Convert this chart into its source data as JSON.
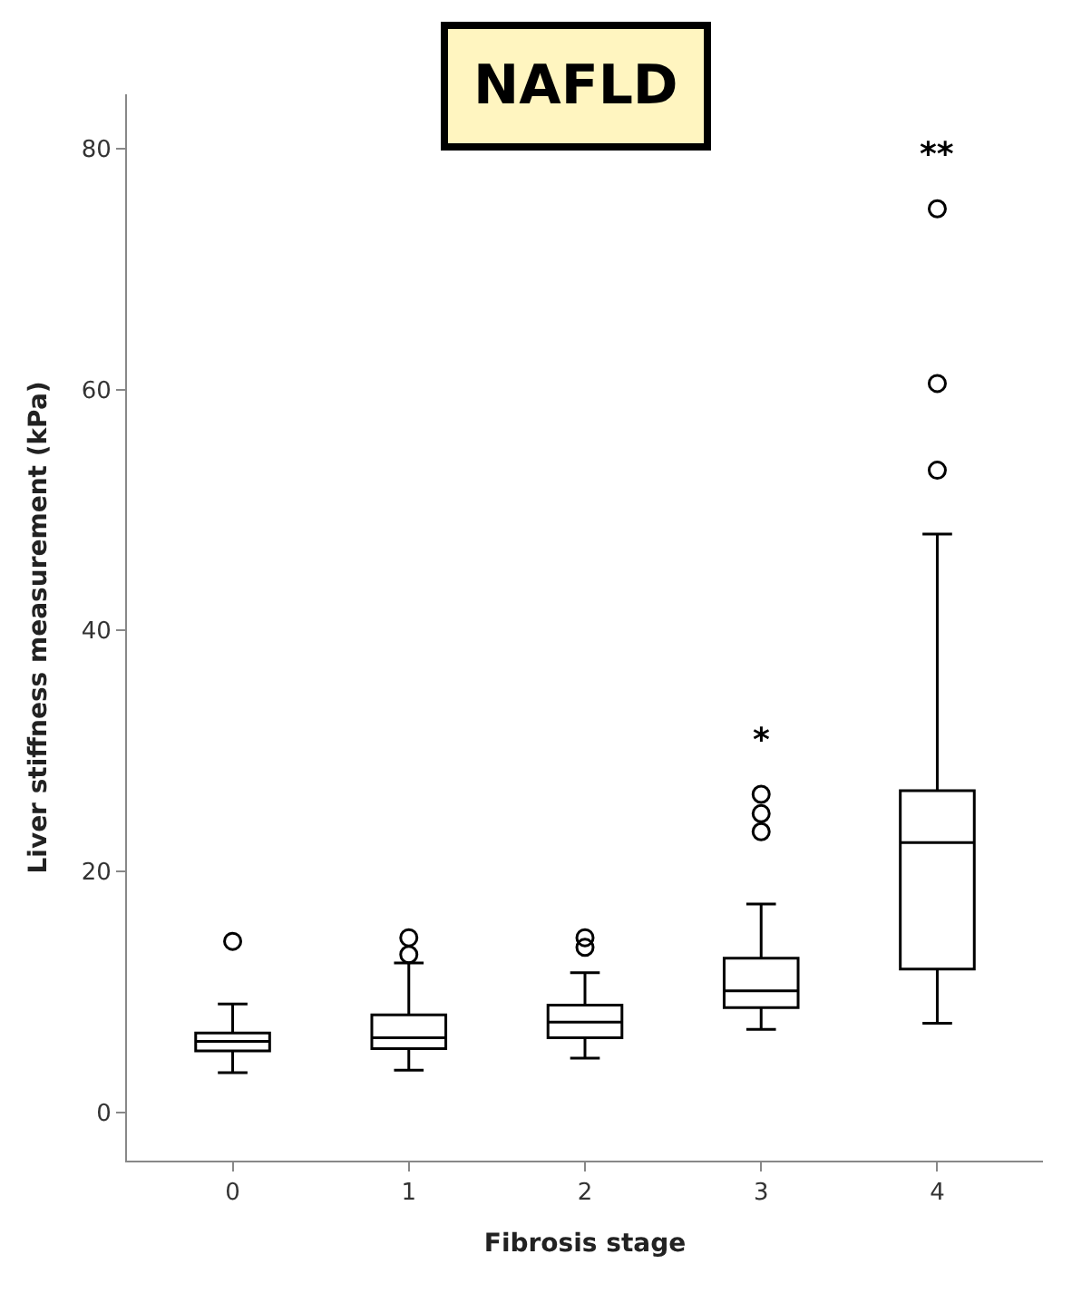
{
  "chart_data": {
    "type": "box",
    "title": "NAFLD",
    "xlabel": "Fibrosis stage",
    "ylabel": "Liver stiffness measurement (kPa)",
    "categories": [
      "0",
      "1",
      "2",
      "3",
      "4"
    ],
    "boxes": [
      {
        "low": 3.3,
        "q1": 5.1,
        "median": 5.9,
        "q3": 6.6,
        "high": 9.0,
        "outliers": [
          14.2
        ]
      },
      {
        "low": 3.5,
        "q1": 5.3,
        "median": 6.2,
        "q3": 8.1,
        "high": 12.4,
        "outliers": [
          13.1,
          14.5
        ]
      },
      {
        "low": 4.5,
        "q1": 6.2,
        "median": 7.5,
        "q3": 8.9,
        "high": 11.6,
        "outliers": [
          13.7,
          14.5
        ]
      },
      {
        "low": 6.9,
        "q1": 8.7,
        "median": 10.1,
        "q3": 12.8,
        "high": 17.3,
        "outliers": [
          23.3,
          24.8,
          26.4
        ]
      },
      {
        "low": 7.4,
        "q1": 11.9,
        "median": 22.4,
        "q3": 26.7,
        "high": 48.0,
        "outliers": [
          53.3,
          60.5,
          75.0
        ]
      }
    ],
    "color": "#000000",
    "annotations": [
      "*",
      "**"
    ],
    "ylim": [
      -4,
      84.5
    ],
    "yticks": [
      0,
      20,
      40,
      60,
      80
    ],
    "marker": "circle"
  }
}
